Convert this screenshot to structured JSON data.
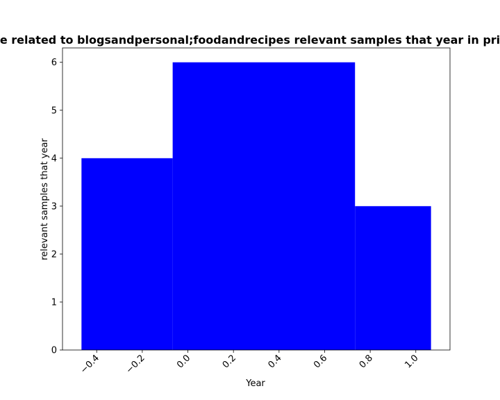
{
  "chart_data": {
    "type": "bar",
    "title": "e related to blogsandpersonal;foodandrecipes relevant samples that year in pri",
    "xlabel": "Year",
    "ylabel": "relevant samples that year",
    "bins": [
      {
        "x_start": -0.4667,
        "x_end": -0.0667,
        "value": 4
      },
      {
        "x_start": -0.0667,
        "x_end": 0.7333,
        "value": 6
      },
      {
        "x_start": 0.7333,
        "x_end": 1.0667,
        "value": 3
      }
    ],
    "xlim": [
      -0.55,
      1.15
    ],
    "ylim": [
      0,
      6.3
    ],
    "xticks": [
      -0.4,
      -0.2,
      0.0,
      0.2,
      0.4,
      0.6,
      0.8,
      1.0
    ],
    "xtick_labels": [
      "−0.4",
      "−0.2",
      "0.0",
      "0.2",
      "0.4",
      "0.6",
      "0.8",
      "1.0"
    ],
    "yticks": [
      0,
      1,
      2,
      3,
      4,
      5,
      6
    ],
    "ytick_labels": [
      "0",
      "1",
      "2",
      "3",
      "4",
      "5",
      "6"
    ],
    "bar_color": "#0000ff",
    "grid": false,
    "legend": false
  }
}
